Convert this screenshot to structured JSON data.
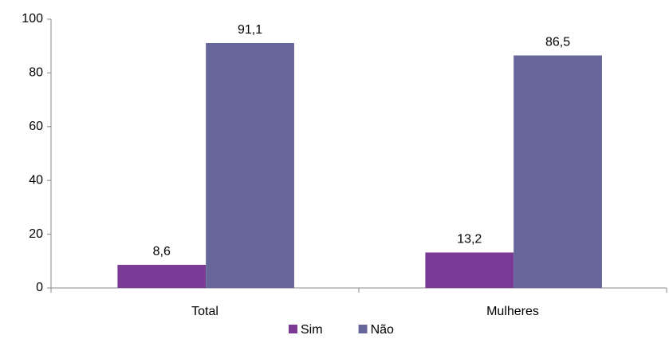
{
  "chart_data": {
    "type": "bar",
    "categories": [
      "Total",
      "Mulheres"
    ],
    "series": [
      {
        "name": "Sim",
        "color": "#7b3a96",
        "values": [
          8.6,
          13.2
        ],
        "value_labels": [
          "8,6",
          "13,2"
        ]
      },
      {
        "name": "Não",
        "color": "#66669a",
        "values": [
          91.1,
          86.5
        ],
        "value_labels": [
          "91,1",
          "86,5"
        ]
      }
    ],
    "ylim": [
      0,
      100
    ],
    "yticks": [
      0,
      20,
      40,
      60,
      80,
      100
    ],
    "grid": false,
    "legend": "bottom"
  }
}
